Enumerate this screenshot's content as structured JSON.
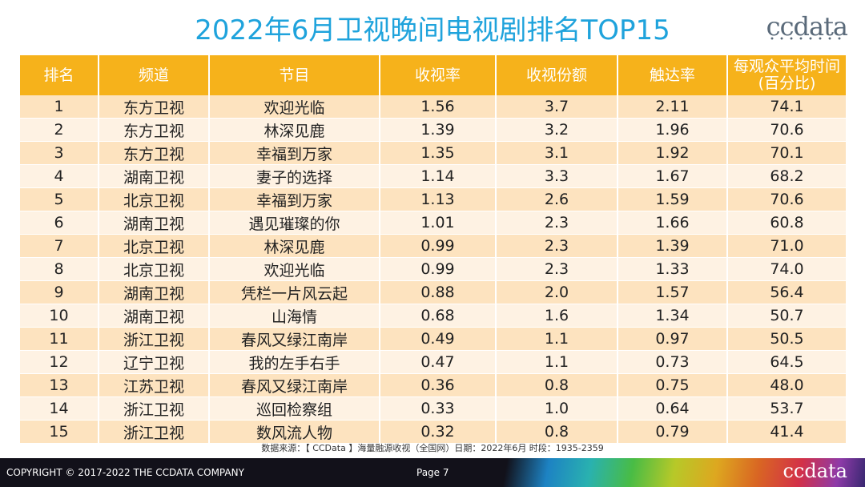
{
  "title": "2022年6月卫视晚间电视剧排名TOP15",
  "logo": "ccdata",
  "table": {
    "headers": [
      "排名",
      "频道",
      "节目",
      "收视率",
      "收视份额",
      "触达率",
      "每观众平均时间\n(百分比)"
    ],
    "rows": [
      [
        "1",
        "东方卫视",
        "欢迎光临",
        "1.56",
        "3.7",
        "2.11",
        "74.1"
      ],
      [
        "2",
        "东方卫视",
        "林深见鹿",
        "1.39",
        "3.2",
        "1.96",
        "70.6"
      ],
      [
        "3",
        "东方卫视",
        "幸福到万家",
        "1.35",
        "3.1",
        "1.92",
        "70.1"
      ],
      [
        "4",
        "湖南卫视",
        "妻子的选择",
        "1.14",
        "3.3",
        "1.67",
        "68.2"
      ],
      [
        "5",
        "北京卫视",
        "幸福到万家",
        "1.13",
        "2.6",
        "1.59",
        "70.6"
      ],
      [
        "6",
        "湖南卫视",
        "遇见璀璨的你",
        "1.01",
        "2.3",
        "1.66",
        "60.8"
      ],
      [
        "7",
        "北京卫视",
        "林深见鹿",
        "0.99",
        "2.3",
        "1.39",
        "71.0"
      ],
      [
        "8",
        "北京卫视",
        "欢迎光临",
        "0.99",
        "2.3",
        "1.33",
        "74.0"
      ],
      [
        "9",
        "湖南卫视",
        "凭栏一片风云起",
        "0.88",
        "2.0",
        "1.57",
        "56.4"
      ],
      [
        "10",
        "湖南卫视",
        "山海情",
        "0.68",
        "1.6",
        "1.34",
        "50.7"
      ],
      [
        "11",
        "浙江卫视",
        "春风又绿江南岸",
        "0.49",
        "1.1",
        "0.97",
        "50.5"
      ],
      [
        "12",
        "辽宁卫视",
        "我的左手右手",
        "0.47",
        "1.1",
        "0.73",
        "64.5"
      ],
      [
        "13",
        "江苏卫视",
        "春风又绿江南岸",
        "0.36",
        "0.8",
        "0.75",
        "48.0"
      ],
      [
        "14",
        "浙江卫视",
        "巡回检察组",
        "0.33",
        "1.0",
        "0.64",
        "53.7"
      ],
      [
        "15",
        "浙江卫视",
        "数风流人物",
        "0.32",
        "0.8",
        "0.79",
        "41.4"
      ]
    ]
  },
  "source": "数据来源：【 CCData 】海量融源收视（全国网）日期：2022年6月  时段：1935-2359",
  "footer": {
    "copyright": "COPYRIGHT © 2017-2022 THE CCDATA COMPANY",
    "page": "Page 7",
    "logo": "ccdata"
  },
  "colors": {
    "title": "#1fa3dc",
    "header_bg": "#f6b21b",
    "row_odd": "#fde3bf",
    "row_even": "#fef2e3"
  }
}
